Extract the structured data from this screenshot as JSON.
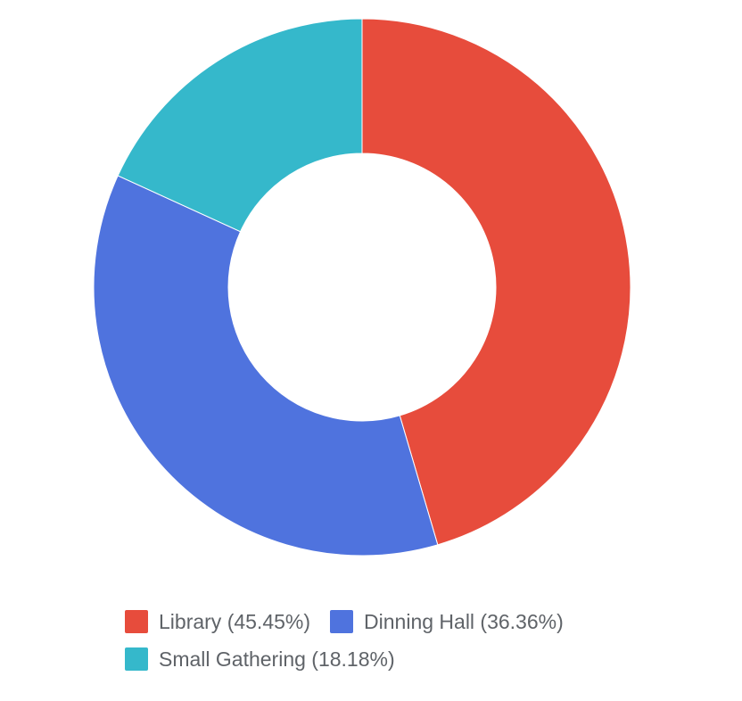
{
  "chart_data": {
    "type": "pie",
    "subtype": "donut",
    "title": "",
    "slices": [
      {
        "label": "Library (45.45%)",
        "value": 45.45,
        "color": "#e74c3c"
      },
      {
        "label": "Dinning Hall (36.36%)",
        "value": 36.36,
        "color": "#4f73de"
      },
      {
        "label": "Small Gathering (18.18%)",
        "value": 18.18,
        "color": "#35b8cb"
      }
    ],
    "legend_position": "bottom"
  }
}
